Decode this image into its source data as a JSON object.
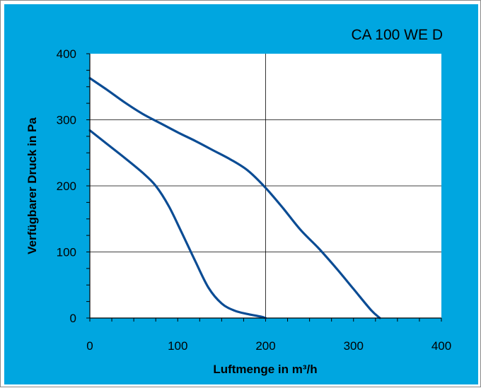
{
  "chart_data": {
    "type": "line",
    "title": "CA 100 WE D",
    "xlabel": "Luftmenge in m³/h",
    "ylabel": "Verfügbarer Druck in Pa",
    "xlim": [
      0,
      400
    ],
    "ylim": [
      0,
      400
    ],
    "x_ticks": [
      "0",
      "100",
      "200",
      "300",
      "400"
    ],
    "y_ticks": [
      "0",
      "100",
      "200",
      "300",
      "400"
    ],
    "grid": "major lines at 200 (x) and 100, 200, 300 (y)",
    "legend": "none",
    "colors": {
      "background": "#00a6e0",
      "plot": "#ffffff",
      "line": "#0b4c94",
      "grid": "#000000"
    },
    "series": [
      {
        "points": [
          [
            0,
            363
          ],
          [
            20,
            345
          ],
          [
            40,
            326
          ],
          [
            60,
            309
          ],
          [
            80,
            295
          ],
          [
            100,
            281
          ],
          [
            120,
            268
          ],
          [
            140,
            254
          ],
          [
            160,
            240
          ],
          [
            180,
            223
          ],
          [
            200,
            197
          ],
          [
            220,
            166
          ],
          [
            240,
            133
          ],
          [
            260,
            106
          ],
          [
            280,
            76
          ],
          [
            300,
            44
          ],
          [
            320,
            12
          ],
          [
            330,
            0
          ]
        ]
      },
      {
        "points": [
          [
            0,
            284
          ],
          [
            20,
            263
          ],
          [
            40,
            242
          ],
          [
            60,
            220
          ],
          [
            75,
            200
          ],
          [
            90,
            169
          ],
          [
            105,
            128
          ],
          [
            120,
            86
          ],
          [
            135,
            46
          ],
          [
            150,
            22
          ],
          [
            165,
            11
          ],
          [
            180,
            6
          ],
          [
            195,
            2
          ],
          [
            200,
            0
          ]
        ]
      }
    ]
  }
}
